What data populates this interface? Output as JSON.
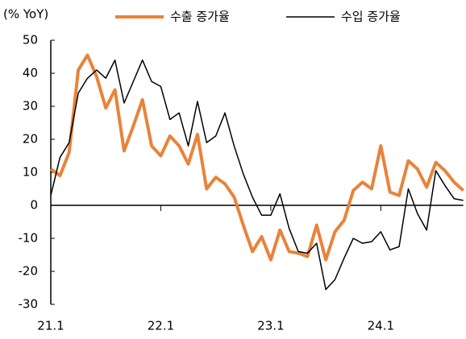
{
  "chart_data": {
    "type": "line",
    "y_label": "(% YoY)",
    "legend": "top",
    "categories": [
      "21.1",
      null,
      null,
      null,
      null,
      null,
      null,
      null,
      null,
      null,
      null,
      null,
      "22.1",
      null,
      null,
      null,
      null,
      null,
      null,
      null,
      null,
      null,
      null,
      null,
      "23.1",
      null,
      null,
      null,
      null,
      null,
      null,
      null,
      null,
      null,
      null,
      null,
      "24.1",
      null,
      null,
      null,
      null,
      null,
      null,
      null,
      null,
      null
    ],
    "series": [
      {
        "name": "수출 증가율",
        "color": "#e8833a",
        "width": 4,
        "values": [
          11,
          9,
          16,
          41,
          45.5,
          39,
          29.5,
          35,
          16.5,
          24,
          32,
          18,
          15,
          21,
          18,
          12.5,
          21.5,
          5,
          8.5,
          6.5,
          2.5,
          -6,
          -14,
          -9.5,
          -16.5,
          -7.5,
          -14,
          -14.5,
          -15.5,
          -6,
          -16.5,
          -8,
          -4.5,
          4.5,
          7,
          5,
          18,
          4,
          3,
          13.5,
          11,
          5.5,
          13,
          10.5,
          7,
          4.5
        ]
      },
      {
        "name": "수입 증가율",
        "color": "#000000",
        "width": 1.5,
        "values": [
          3,
          14.5,
          19,
          34,
          38.5,
          41,
          38.5,
          44,
          31,
          37.5,
          44,
          37.5,
          36,
          26,
          28,
          18,
          31.5,
          19,
          21,
          28,
          18,
          9.5,
          2.5,
          -3,
          -3,
          3.5,
          -7,
          -14,
          -14.5,
          -11.5,
          -25.5,
          -22.5,
          -16,
          -10,
          -11.5,
          -11,
          -8,
          -13.5,
          -12.5,
          5,
          -2.5,
          -7.5,
          10.5,
          6,
          2,
          1.5
        ]
      }
    ],
    "ylim": [
      -30,
      50
    ],
    "yticks": [
      -30,
      -20,
      -10,
      0,
      10,
      20,
      30,
      40,
      50
    ],
    "grid": false
  }
}
